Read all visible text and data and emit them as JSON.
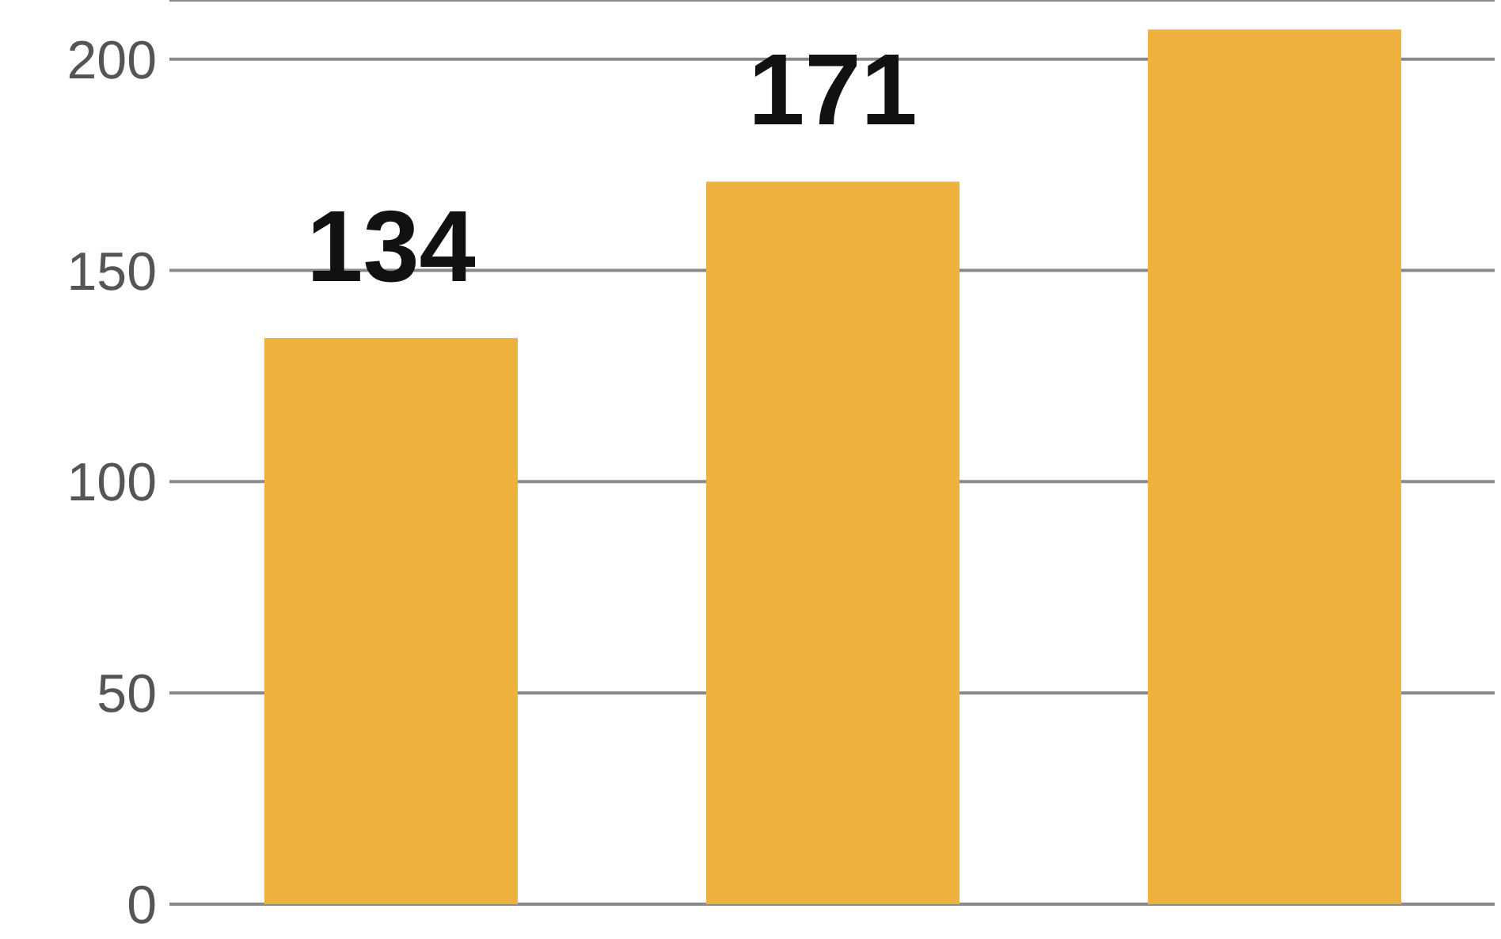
{
  "chart_data": {
    "type": "bar",
    "categories": [
      null,
      null,
      null
    ],
    "values": [
      134,
      171,
      207
    ],
    "value_labels": [
      "134",
      "171",
      null
    ],
    "color": "#efb23e",
    "ylim": [
      0,
      214
    ],
    "yticks": [
      0,
      50,
      100,
      150,
      200
    ],
    "grid": "y",
    "tick_labels": "y"
  }
}
